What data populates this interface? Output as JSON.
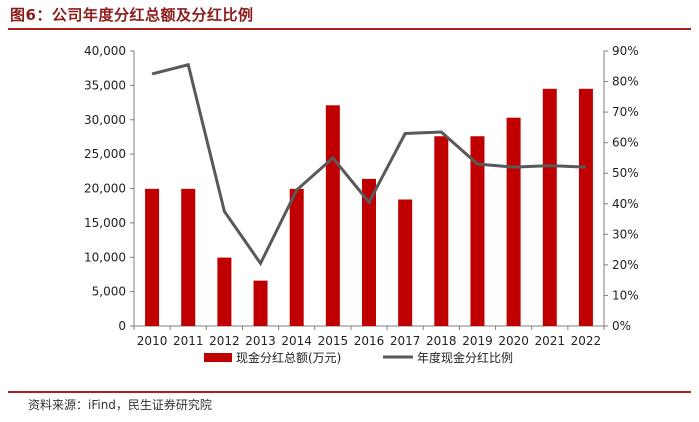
{
  "header": {
    "title": "图6：公司年度分红总额及分红比例"
  },
  "footer": {
    "source": "资料来源：iFind，民生证券研究院"
  },
  "chart_data": {
    "type": "bar",
    "title": "",
    "categories": [
      "2010",
      "2011",
      "2012",
      "2013",
      "2014",
      "2015",
      "2016",
      "2017",
      "2018",
      "2019",
      "2020",
      "2021",
      "2022"
    ],
    "series": [
      {
        "name": "现金分红总额(万元)",
        "type": "bar",
        "axis": "left",
        "color": "#c00000",
        "values": [
          19950,
          19950,
          9950,
          6600,
          19950,
          32100,
          21400,
          18400,
          27600,
          27600,
          30300,
          34500,
          34500
        ]
      },
      {
        "name": "年度现金分红比例",
        "type": "line",
        "axis": "right",
        "color": "#595959",
        "values": [
          0.825,
          0.855,
          0.375,
          0.205,
          0.445,
          0.55,
          0.405,
          0.63,
          0.635,
          0.53,
          0.52,
          0.525,
          0.52
        ]
      }
    ],
    "y_left": {
      "min": 0,
      "max": 40000,
      "step": 5000,
      "ticks": [
        "0",
        "5,000",
        "10,000",
        "15,000",
        "20,000",
        "25,000",
        "30,000",
        "35,000",
        "40,000"
      ]
    },
    "y_right": {
      "min": 0,
      "max": 0.9,
      "step": 0.1,
      "ticks": [
        "0%",
        "10%",
        "20%",
        "30%",
        "40%",
        "50%",
        "60%",
        "70%",
        "80%",
        "90%"
      ]
    },
    "grid": false,
    "legend_position": "bottom"
  }
}
